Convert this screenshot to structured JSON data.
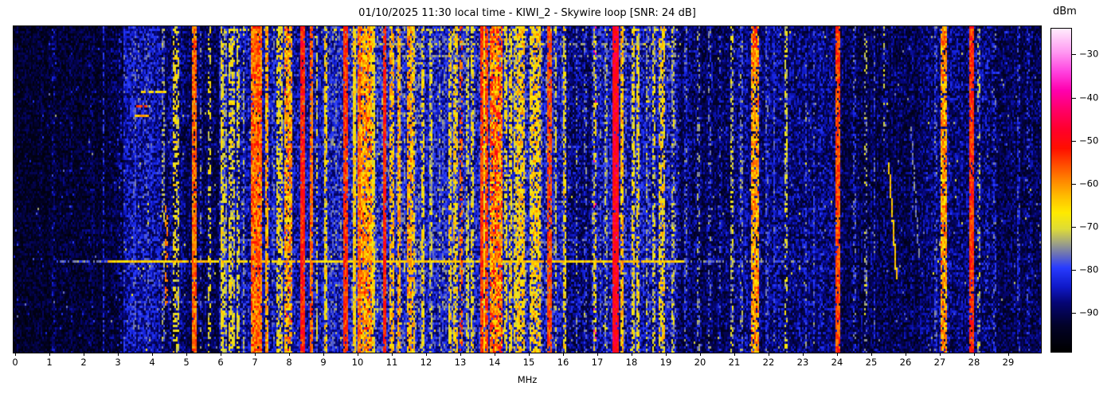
{
  "chart_data": {
    "type": "heatmap",
    "title": "01/10/2025 11:30 local time - KIWI_2 - Skywire loop [SNR: 24 dB]",
    "xlabel": "MHz",
    "x_axis": {
      "range": [
        0,
        29.95
      ],
      "ticks": [
        0,
        1,
        2,
        3,
        4,
        5,
        6,
        7,
        8,
        9,
        10,
        11,
        12,
        13,
        14,
        15,
        16,
        17,
        18,
        19,
        20,
        21,
        22,
        23,
        24,
        25,
        26,
        27,
        28,
        29
      ]
    },
    "colorbar": {
      "label": "dBm",
      "ticks": [
        -30,
        -40,
        -50,
        -60,
        -70,
        -80,
        -90
      ],
      "range": [
        -99,
        -24
      ]
    },
    "colormap": [
      [
        0.0,
        0,
        0,
        0
      ],
      [
        0.08,
        2,
        2,
        40
      ],
      [
        0.15,
        5,
        5,
        115
      ],
      [
        0.2,
        15,
        25,
        200
      ],
      [
        0.26,
        40,
        60,
        255
      ],
      [
        0.3,
        105,
        112,
        185
      ],
      [
        0.34,
        165,
        168,
        125
      ],
      [
        0.38,
        222,
        220,
        55
      ],
      [
        0.43,
        255,
        235,
        0
      ],
      [
        0.48,
        255,
        190,
        0
      ],
      [
        0.53,
        255,
        135,
        0
      ],
      [
        0.58,
        255,
        75,
        0
      ],
      [
        0.63,
        255,
        15,
        0
      ],
      [
        0.69,
        255,
        0,
        45
      ],
      [
        0.75,
        255,
        0,
        105
      ],
      [
        0.81,
        255,
        0,
        175
      ],
      [
        0.87,
        255,
        70,
        225
      ],
      [
        0.93,
        255,
        155,
        242
      ],
      [
        1.0,
        255,
        235,
        252
      ]
    ],
    "noise_seed": 1337,
    "background_regions": [
      [
        0.0,
        1.0,
        0.02,
        0.12
      ],
      [
        1.0,
        2.55,
        0.02,
        0.14
      ],
      [
        2.55,
        3.15,
        0.03,
        0.15
      ],
      [
        3.15,
        4.25,
        0.09,
        0.19
      ],
      [
        4.25,
        5.0,
        0.05,
        0.17
      ],
      [
        5.0,
        5.95,
        0.04,
        0.16
      ],
      [
        5.95,
        7.5,
        0.08,
        0.2
      ],
      [
        7.5,
        9.0,
        0.09,
        0.21
      ],
      [
        9.0,
        13.0,
        0.11,
        0.22
      ],
      [
        13.0,
        16.1,
        0.1,
        0.22
      ],
      [
        16.1,
        16.85,
        0.06,
        0.17
      ],
      [
        16.85,
        19.35,
        0.09,
        0.21
      ],
      [
        19.35,
        21.0,
        0.05,
        0.16
      ],
      [
        21.0,
        24.0,
        0.065,
        0.17
      ],
      [
        24.0,
        26.4,
        0.04,
        0.15
      ],
      [
        26.4,
        28.6,
        0.06,
        0.17
      ],
      [
        28.6,
        29.95,
        0.045,
        0.15
      ]
    ],
    "signals": [
      [
        1.08,
        1.11,
        0.17,
        0.3
      ],
      [
        1.62,
        1.65,
        0.16,
        0.3
      ],
      [
        2.12,
        2.15,
        0.15,
        0.25
      ],
      [
        2.54,
        2.58,
        0.22,
        0.55
      ],
      [
        3.02,
        3.05,
        0.2,
        0.3
      ],
      [
        3.45,
        3.49,
        0.25,
        0.4
      ],
      [
        4.28,
        4.33,
        0.32,
        0.5
      ],
      [
        4.35,
        4.4,
        0.55,
        0.5,
        0.12,
        0,
        0,
        0.55,
        0.85
      ],
      [
        4.6,
        4.65,
        0.42,
        0.5
      ],
      [
        4.72,
        4.76,
        0.4,
        0.5
      ],
      [
        5.15,
        5.25,
        0.55,
        0.9,
        0.14,
        0.06,
        0.62
      ],
      [
        5.38,
        5.41,
        0.3,
        0.4
      ],
      [
        5.63,
        5.67,
        0.4,
        0.45
      ],
      [
        6.02,
        6.06,
        0.42,
        0.7
      ],
      [
        6.08,
        6.12,
        0.35,
        0.6
      ],
      [
        6.24,
        6.28,
        0.42,
        0.6
      ],
      [
        6.31,
        6.35,
        0.4,
        0.55
      ],
      [
        6.48,
        6.52,
        0.4,
        0.5
      ],
      [
        6.64,
        6.67,
        0.33,
        0.5
      ],
      [
        6.88,
        7.16,
        0.55,
        0.95,
        0.16,
        0.12,
        0.64
      ],
      [
        7.28,
        7.35,
        0.5,
        0.8
      ],
      [
        7.62,
        7.66,
        0.42,
        0.6
      ],
      [
        7.72,
        7.76,
        0.42,
        0.55
      ],
      [
        7.88,
        8.05,
        0.5,
        0.75,
        0.18,
        0.05,
        0.7
      ],
      [
        8.34,
        8.42,
        0.62,
        0.97,
        0.14,
        0.1,
        0.7
      ],
      [
        8.6,
        8.66,
        0.56,
        0.85
      ],
      [
        8.77,
        8.81,
        0.42,
        0.5
      ],
      [
        9.03,
        9.08,
        0.44,
        0.7
      ],
      [
        9.6,
        9.66,
        0.6,
        0.95,
        0.12
      ],
      [
        9.88,
        9.93,
        0.45,
        0.9
      ],
      [
        9.99,
        10.04,
        0.55,
        0.9
      ],
      [
        10.05,
        10.35,
        0.5,
        0.85,
        0.18,
        0.06,
        0.63
      ],
      [
        10.4,
        10.45,
        0.43,
        0.8
      ],
      [
        10.75,
        10.8,
        0.62,
        0.95,
        0.12
      ],
      [
        10.93,
        11.03,
        0.48,
        0.7
      ],
      [
        11.18,
        11.23,
        0.5,
        0.8
      ],
      [
        11.42,
        11.52,
        0.5,
        0.7,
        0.16
      ],
      [
        11.55,
        11.62,
        0.46,
        0.6
      ],
      [
        11.85,
        11.89,
        0.42,
        0.6
      ],
      [
        12.1,
        12.14,
        0.38,
        0.5
      ],
      [
        12.35,
        12.39,
        0.32,
        0.5
      ],
      [
        12.63,
        12.7,
        0.44,
        0.6
      ],
      [
        12.78,
        12.9,
        0.44,
        0.6,
        0.16
      ],
      [
        12.98,
        13.04,
        0.56,
        0.5,
        0.14,
        0.06,
        0.64
      ],
      [
        13.17,
        13.22,
        0.38,
        0.6
      ],
      [
        13.3,
        13.35,
        0.42,
        0.6
      ],
      [
        13.56,
        13.61,
        0.6,
        0.9,
        0.12
      ],
      [
        13.63,
        13.7,
        0.45,
        0.7
      ],
      [
        13.72,
        13.77,
        0.6,
        0.85,
        0.12
      ],
      [
        13.88,
        14.2,
        0.52,
        0.9,
        0.2,
        0.18,
        0.66
      ],
      [
        14.28,
        14.33,
        0.42,
        0.6
      ],
      [
        14.43,
        14.48,
        0.44,
        0.65
      ],
      [
        14.55,
        14.6,
        0.42,
        0.6
      ],
      [
        14.67,
        14.84,
        0.46,
        0.7,
        0.16
      ],
      [
        15.0,
        15.05,
        0.44,
        0.7
      ],
      [
        15.12,
        15.32,
        0.46,
        0.7,
        0.16
      ],
      [
        15.55,
        15.65,
        0.58,
        0.85,
        0.12
      ],
      [
        15.75,
        15.79,
        0.4,
        0.5
      ],
      [
        15.98,
        16.04,
        0.44,
        0.6
      ],
      [
        16.35,
        16.38,
        0.3,
        0.4
      ],
      [
        16.6,
        16.63,
        0.28,
        0.35
      ],
      [
        16.88,
        16.92,
        0.42,
        0.45,
        0.14,
        0.1,
        0.8
      ],
      [
        17.05,
        17.08,
        0.28,
        0.4
      ],
      [
        17.2,
        17.24,
        0.34,
        0.5
      ],
      [
        17.46,
        17.57,
        0.66,
        0.97,
        0.12,
        0.12,
        0.74
      ],
      [
        17.68,
        17.73,
        0.48,
        0.8
      ],
      [
        17.98,
        18.03,
        0.42,
        0.6
      ],
      [
        18.13,
        18.18,
        0.42,
        0.6
      ],
      [
        18.4,
        18.44,
        0.36,
        0.5
      ],
      [
        18.6,
        18.64,
        0.4,
        0.5
      ],
      [
        18.78,
        18.92,
        0.44,
        0.6,
        0.16
      ],
      [
        19.15,
        19.19,
        0.36,
        0.5
      ],
      [
        19.55,
        19.59,
        0.28,
        0.4
      ],
      [
        19.9,
        19.94,
        0.3,
        0.4
      ],
      [
        20.22,
        20.26,
        0.28,
        0.4
      ],
      [
        20.55,
        20.58,
        0.26,
        0.35
      ],
      [
        20.88,
        20.92,
        0.36,
        0.5
      ],
      [
        21.18,
        21.22,
        0.3,
        0.4
      ],
      [
        21.48,
        21.68,
        0.5,
        0.8,
        0.16,
        0.05,
        0.62
      ],
      [
        21.55,
        21.63,
        0.62,
        0.9,
        0.1,
        0,
        0,
        0,
        0.06
      ],
      [
        21.93,
        21.97,
        0.26,
        0.5
      ],
      [
        22.12,
        22.16,
        0.26,
        0.5
      ],
      [
        22.48,
        22.52,
        0.38,
        0.5
      ],
      [
        23.05,
        23.09,
        0.28,
        0.4
      ],
      [
        23.28,
        23.32,
        0.28,
        0.4
      ],
      [
        23.95,
        24.03,
        0.58,
        0.9,
        0.12,
        0.06,
        0.66
      ],
      [
        24.48,
        24.52,
        0.26,
        0.4
      ],
      [
        24.78,
        24.82,
        0.34,
        0.35
      ],
      [
        25.05,
        25.09,
        0.26,
        0.4
      ],
      [
        25.33,
        25.37,
        0.36,
        0.3,
        0.14,
        0,
        0,
        0,
        0.35
      ],
      [
        26.84,
        26.88,
        0.26,
        0.5
      ],
      [
        27.02,
        27.18,
        0.5,
        0.85,
        0.16,
        0.08,
        0.6
      ],
      [
        27.88,
        27.97,
        0.6,
        0.92,
        0.12,
        0.08,
        0.68
      ],
      [
        28.08,
        28.12,
        0.34,
        0.4
      ],
      [
        28.55,
        28.59,
        0.26,
        0.4
      ],
      [
        29.25,
        29.29,
        0.24,
        0.4
      ],
      [
        29.55,
        29.59,
        0.22,
        0.35
      ]
    ],
    "horizontal_events": [
      [
        0.012,
        6.2,
        19.3,
        0.4,
        0.3,
        2
      ],
      [
        0.055,
        9.8,
        19.4,
        0.34,
        0.55,
        2
      ],
      [
        0.09,
        10.2,
        19.4,
        0.3,
        0.45,
        1
      ],
      [
        0.2,
        3.68,
        4.35,
        0.45,
        0.9,
        2
      ],
      [
        0.245,
        3.55,
        3.8,
        0.58,
        0.9,
        3
      ],
      [
        0.275,
        3.5,
        3.85,
        0.5,
        0.8,
        2
      ],
      [
        0.37,
        6.0,
        19.4,
        0.27,
        0.4,
        1
      ],
      [
        0.495,
        6.0,
        19.4,
        0.27,
        0.4,
        1
      ],
      [
        0.655,
        5.9,
        19.4,
        0.28,
        0.45,
        1
      ],
      [
        0.683,
        9.0,
        19.4,
        0.27,
        0.4,
        1
      ],
      [
        0.718,
        1.2,
        2.7,
        0.3,
        0.7,
        2
      ],
      [
        0.718,
        2.7,
        19.5,
        0.46,
        0.97,
        2
      ],
      [
        0.718,
        19.5,
        23.2,
        0.3,
        0.55,
        1
      ],
      [
        0.84,
        3.6,
        19.2,
        0.27,
        0.4,
        1
      ]
    ],
    "diagonal_events": [
      [
        25.47,
        0.415,
        25.72,
        0.77,
        0.46,
        0.85
      ],
      [
        26.14,
        0.3,
        26.35,
        0.7,
        0.3,
        0.5
      ]
    ]
  }
}
